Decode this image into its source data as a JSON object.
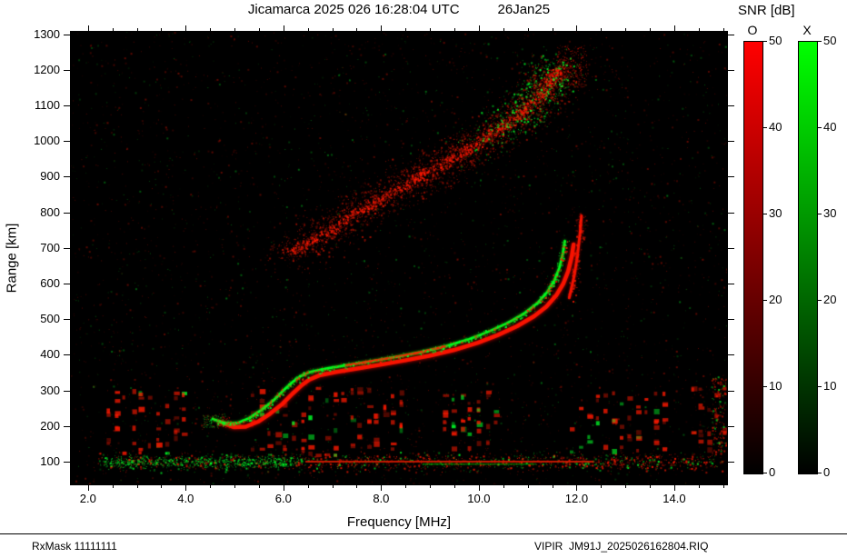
{
  "header": {
    "title": "Jicamarca 2025 026 16:28:04 UTC",
    "date": "26Jan25"
  },
  "footer": {
    "rxmask": "RxMask 11111111",
    "filename": "VIPIR  JM91J_2025026162804.RIQ"
  },
  "chart_data": {
    "type": "heatmap",
    "title": "Jicamarca 2025 026 16:28:04 UTC 26Jan25",
    "xlabel": "Frequency [MHz]",
    "ylabel": "Range [km]",
    "xlim": [
      1.65,
      15.08
    ],
    "ylim": [
      36,
      1307
    ],
    "x_ticks": [
      2,
      4,
      6,
      8,
      10,
      12,
      14
    ],
    "x_tick_labels": [
      "2.0",
      "4.0",
      "6.0",
      "8.0",
      "10.0",
      "12.0",
      "14.0"
    ],
    "x_minor_step": 0.5,
    "y_ticks": [
      100,
      200,
      300,
      400,
      500,
      600,
      700,
      800,
      900,
      1000,
      1100,
      1200,
      1300
    ],
    "background": "#000000",
    "grid": false,
    "colorbar": {
      "label": "SNR [dB]",
      "min": 0,
      "max": 50,
      "ticks": [
        0,
        10,
        20,
        30,
        40,
        50
      ],
      "o": {
        "label": "O",
        "color": "#ff0000"
      },
      "x": {
        "label": "X",
        "color": "#00ff00"
      }
    },
    "series": {
      "x_mode_trace": {
        "name": "X-mode echo trace",
        "color": "#00ff00",
        "points": [
          [
            4.55,
            220
          ],
          [
            4.8,
            207
          ],
          [
            5.05,
            208
          ],
          [
            5.3,
            222
          ],
          [
            5.55,
            245
          ],
          [
            5.8,
            272
          ],
          [
            6.0,
            300
          ],
          [
            6.2,
            325
          ],
          [
            6.35,
            340
          ],
          [
            6.55,
            352
          ],
          [
            6.9,
            362
          ],
          [
            7.3,
            371
          ],
          [
            7.8,
            382
          ],
          [
            8.3,
            394
          ],
          [
            8.8,
            407
          ],
          [
            9.3,
            423
          ],
          [
            9.8,
            444
          ],
          [
            10.2,
            465
          ],
          [
            10.6,
            490
          ],
          [
            10.95,
            518
          ],
          [
            11.2,
            545
          ],
          [
            11.4,
            576
          ],
          [
            11.55,
            610
          ],
          [
            11.65,
            645
          ],
          [
            11.72,
            685
          ],
          [
            11.76,
            720
          ]
        ]
      },
      "o_mode_trace": {
        "name": "O-mode echo trace",
        "color": "#ff0000",
        "freq_offset_mhz": 0.18,
        "range_offset_km": -10,
        "asymptote_points": [
          [
            11.85,
            560
          ],
          [
            11.95,
            620
          ],
          [
            12.02,
            680
          ],
          [
            12.07,
            740
          ],
          [
            12.1,
            790
          ]
        ]
      },
      "second_hop": {
        "name": "Second-hop spread echo",
        "color": "#cc0000",
        "points": [
          [
            6.15,
            685
          ],
          [
            6.7,
            730
          ],
          [
            7.3,
            782
          ],
          [
            7.9,
            832
          ],
          [
            8.5,
            878
          ],
          [
            9.1,
            925
          ],
          [
            9.7,
            972
          ],
          [
            10.3,
            1025
          ],
          [
            10.8,
            1072
          ],
          [
            11.2,
            1122
          ],
          [
            11.45,
            1168
          ],
          [
            11.6,
            1205
          ]
        ]
      },
      "ground_noise_band": {
        "name": "Noise band at 100 km",
        "range_km": 100,
        "f_start": 2.2,
        "f_end": 15.0,
        "solid_line": {
          "f_start": 6.45,
          "f_end": 12.35,
          "color": "#cc2000"
        },
        "green_segment": {
          "f_start": 8.85,
          "f_end": 11.15
        }
      },
      "rfi_bands": [
        {
          "f_start": 2.35,
          "f_end": 3.95,
          "r_min": 125,
          "r_max": 305
        },
        {
          "f_start": 5.3,
          "f_end": 8.3,
          "r_min": 120,
          "r_max": 310
        },
        {
          "f_start": 9.25,
          "f_end": 10.2,
          "r_min": 125,
          "r_max": 300
        },
        {
          "f_start": 11.85,
          "f_end": 13.65,
          "r_min": 125,
          "r_max": 305
        },
        {
          "f_start": 14.3,
          "f_end": 15.0,
          "r_min": 120,
          "r_max": 320
        }
      ]
    }
  }
}
